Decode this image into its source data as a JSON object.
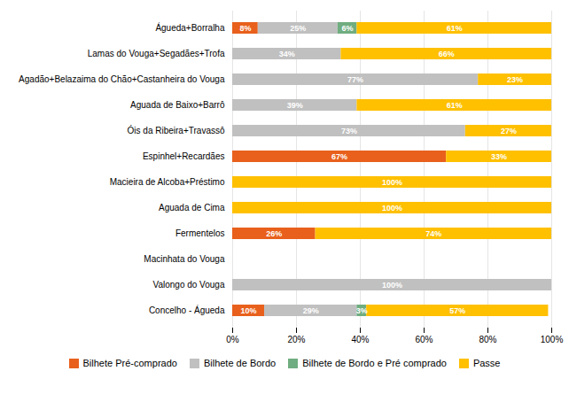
{
  "chart_data": {
    "type": "bar",
    "orientation": "horizontal",
    "stacked": true,
    "data_labels": true,
    "grid": true,
    "legend": "bottom",
    "categories": [
      "Águeda+Borralha",
      "Lamas do Vouga+Segadães+Trofa",
      "Agadão+Belazaima do Chão+Castanheira do Vouga",
      "Aguada de Baixo+Barrô",
      "Óis da Ribeira+Travassô",
      "Espinhel+Recardães",
      "Macieira de Alcoba+Préstimo",
      "Aguada de Cima",
      "Fermentelos",
      "Macinhata do Vouga",
      "Valongo do Vouga",
      "Concelho - Águeda"
    ],
    "series": [
      {
        "name": "Bilhete Pré-comprado",
        "color": "#E8601C",
        "values": [
          8,
          0,
          0,
          0,
          0,
          67,
          0,
          0,
          26,
          0,
          0,
          10
        ],
        "value_labels": [
          "8%",
          null,
          null,
          null,
          null,
          "67%",
          null,
          null,
          "26%",
          null,
          null,
          "10%"
        ]
      },
      {
        "name": "Bilhete de Bordo",
        "color": "#C0C0C0",
        "values": [
          25,
          34,
          77,
          39,
          73,
          0,
          0,
          0,
          0,
          0,
          100,
          29
        ],
        "value_labels": [
          "25%",
          "34%",
          "77%",
          "39%",
          "73%",
          null,
          null,
          null,
          null,
          null,
          "100%",
          "29%"
        ]
      },
      {
        "name": "Bilhete de Bordo e Pré comprado",
        "color": "#70AD80",
        "values": [
          6,
          0,
          0,
          0,
          0,
          0,
          0,
          0,
          0,
          0,
          0,
          3
        ],
        "value_labels": [
          "6%",
          null,
          null,
          null,
          null,
          null,
          null,
          null,
          null,
          null,
          null,
          "3%"
        ]
      },
      {
        "name": "Passe",
        "color": "#FFC000",
        "values": [
          61,
          66,
          23,
          61,
          27,
          33,
          100,
          100,
          74,
          0,
          0,
          57
        ],
        "value_labels": [
          "61%",
          "66%",
          "23%",
          "61%",
          "27%",
          "33%",
          "100%",
          "100%",
          "74%",
          null,
          null,
          "57%"
        ]
      }
    ],
    "xlim": [
      0,
      100
    ],
    "xticks": [
      {
        "value": 0,
        "label": "0%"
      },
      {
        "value": 20,
        "label": "20%"
      },
      {
        "value": 40,
        "label": "40%"
      },
      {
        "value": 60,
        "label": "60%"
      },
      {
        "value": 80,
        "label": "80%"
      },
      {
        "value": 100,
        "label": "100%"
      }
    ]
  }
}
